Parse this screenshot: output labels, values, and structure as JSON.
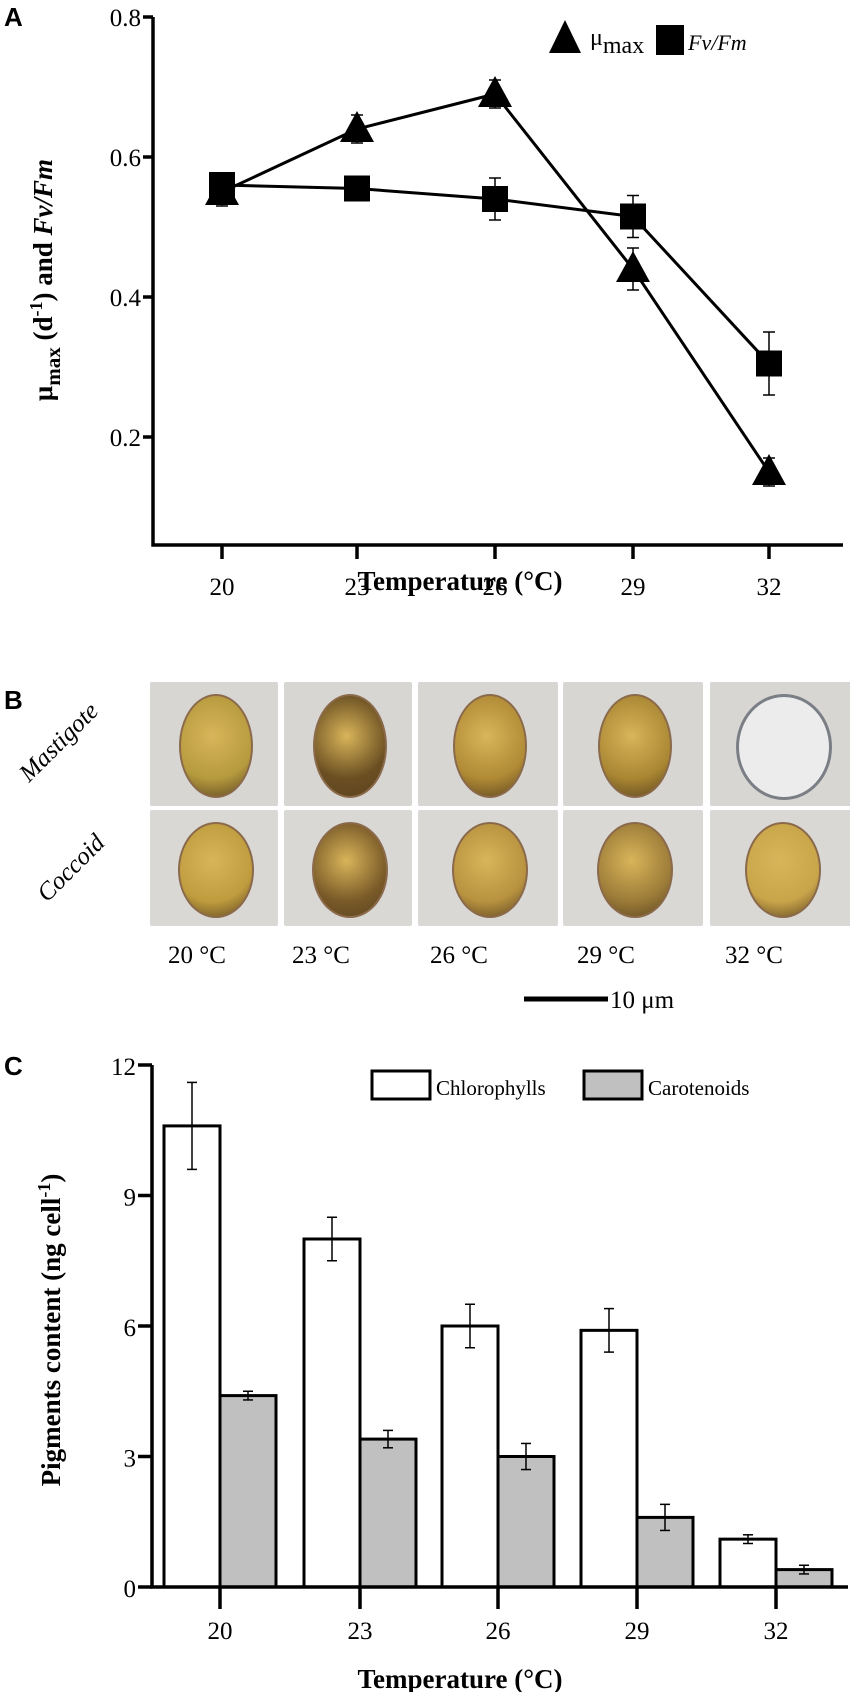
{
  "panels": {
    "a": {
      "letter": "A"
    },
    "b": {
      "letter": "B"
    },
    "c": {
      "letter": "C"
    }
  },
  "chart_data": [
    {
      "type": "line",
      "panel": "A",
      "xlabel": "Temperature (°C)",
      "ylabel": "μmax (d-1) and Fv/Fm",
      "categories": [
        "20",
        "23",
        "26",
        "29",
        "32"
      ],
      "x": [
        20,
        23,
        26,
        29,
        32
      ],
      "ylim": [
        0.0,
        0.8
      ],
      "yticks": [
        "0.2",
        "0.4",
        "0.6",
        "0.8"
      ],
      "legend": [
        {
          "name": "μmax",
          "marker": "triangle"
        },
        {
          "name": "Fv/Fm",
          "marker": "square"
        }
      ],
      "series": [
        {
          "name": "μmax",
          "marker": "triangle",
          "values": [
            0.55,
            0.64,
            0.69,
            0.44,
            0.15
          ],
          "errors": [
            0.02,
            0.02,
            0.02,
            0.03,
            0.02
          ]
        },
        {
          "name": "Fv/Fm",
          "marker": "square",
          "values": [
            0.56,
            0.555,
            0.54,
            0.515,
            0.305
          ],
          "errors": [
            0.01,
            0.01,
            0.03,
            0.03,
            0.045
          ]
        }
      ]
    },
    {
      "type": "bar",
      "panel": "C",
      "xlabel": "Temperature (°C)",
      "ylabel": "Pigments content (ng cell-1)",
      "categories": [
        "20",
        "23",
        "26",
        "29",
        "32"
      ],
      "ylim": [
        0,
        12
      ],
      "yticks": [
        "0",
        "3",
        "6",
        "9",
        "12"
      ],
      "legend": [
        {
          "name": "Chlorophylls",
          "color": "#ffffff"
        },
        {
          "name": "Carotenoids",
          "color": "#c0c0c0"
        }
      ],
      "series": [
        {
          "name": "Chlorophylls",
          "color": "#ffffff",
          "values": [
            10.6,
            8.0,
            6.0,
            5.9,
            1.1
          ],
          "errors": [
            1.0,
            0.5,
            0.5,
            0.5,
            0.1
          ]
        },
        {
          "name": "Carotenoids",
          "color": "#c0c0c0",
          "values": [
            4.4,
            3.4,
            3.0,
            1.6,
            0.4
          ],
          "errors": [
            0.1,
            0.2,
            0.3,
            0.3,
            0.1
          ]
        }
      ]
    }
  ],
  "micrographs": {
    "rows": [
      "Mastigote",
      "Coccoid"
    ],
    "temperatures": [
      "20 °C",
      "23 °C",
      "26 °C",
      "29 °C",
      "32 °C"
    ],
    "scale_bar": "10 μm"
  }
}
